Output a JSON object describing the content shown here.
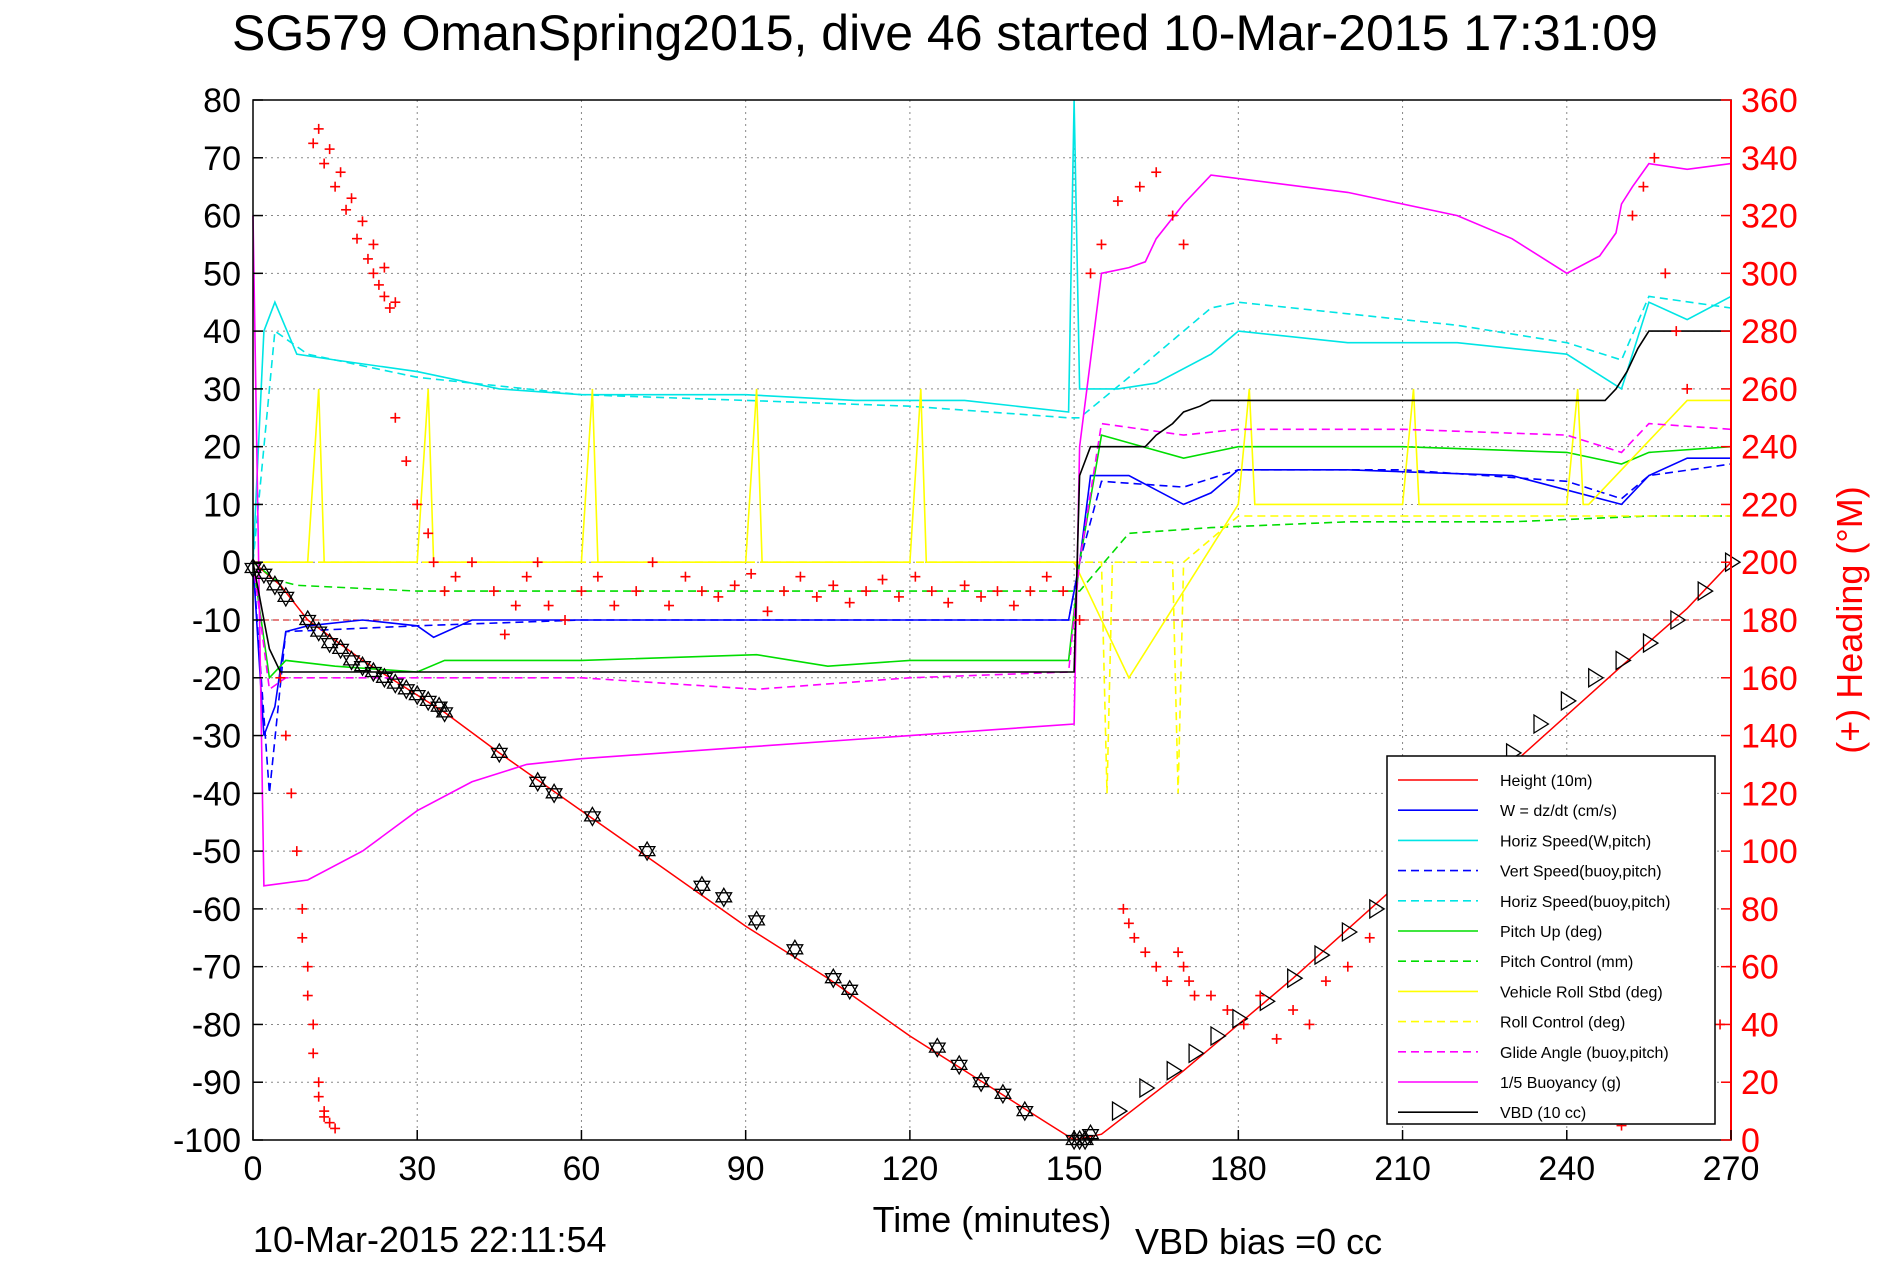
{
  "chart_data": {
    "type": "line",
    "title": "SG579 OmanSpring2015, dive 46 started 10-Mar-2015 17:31:09",
    "xlabel": "Time (minutes)",
    "ylabel_right": "(+) Heading (°M)",
    "footer_left": "10-Mar-2015 22:11:54",
    "footer_right": "VBD bias =0 cc",
    "xlim": [
      0,
      270
    ],
    "ylim": [
      -100,
      80
    ],
    "ylim_right": [
      0,
      360
    ],
    "xticks": [
      "0",
      "30",
      "60",
      "90",
      "120",
      "150",
      "180",
      "210",
      "240",
      "270"
    ],
    "yticks": [
      "80",
      "70",
      "60",
      "50",
      "40",
      "30",
      "20",
      "10",
      "0",
      "-10",
      "-20",
      "-30",
      "-40",
      "-50",
      "-60",
      "-70",
      "-80",
      "-90",
      "-100"
    ],
    "yticks_right": [
      "360",
      "340",
      "320",
      "300",
      "280",
      "260",
      "240",
      "220",
      "200",
      "180",
      "160",
      "140",
      "120",
      "100",
      "80",
      "60",
      "40",
      "20",
      "0"
    ],
    "grid": true,
    "legend_position": "bottom-right",
    "series": [
      {
        "name": "Height (10m)",
        "color": "#ff0000",
        "style": "solid",
        "x": [
          0,
          5,
          10,
          20,
          30,
          35,
          45,
          60,
          75,
          90,
          105,
          120,
          135,
          145,
          150,
          155,
          170,
          190,
          210,
          230,
          250,
          262,
          270
        ],
        "y": [
          0,
          -4,
          -10,
          -17,
          -23,
          -26,
          -33,
          -43,
          -53,
          -63,
          -72,
          -82,
          -91,
          -97,
          -100,
          -99,
          -88,
          -72,
          -55,
          -35,
          -18,
          -8,
          0
        ]
      },
      {
        "name": "W = dz/dt (cm/s)",
        "color": "#0000ff",
        "style": "solid",
        "x": [
          0,
          2,
          4,
          6,
          10,
          20,
          30,
          33,
          40,
          60,
          90,
          120,
          149,
          151,
          153,
          160,
          170,
          175,
          180,
          200,
          230,
          250,
          255,
          262,
          270
        ],
        "y": [
          0,
          -30,
          -25,
          -12,
          -11,
          -10,
          -11,
          -13,
          -10,
          -10,
          -10,
          -10,
          -10,
          0,
          15,
          15,
          10,
          12,
          16,
          16,
          15,
          10,
          15,
          18,
          18
        ]
      },
      {
        "name": "Horiz Speed(W,pitch)",
        "color": "#00e5e5",
        "style": "solid",
        "x": [
          0,
          2,
          4,
          8,
          15,
          30,
          45,
          60,
          90,
          110,
          130,
          149,
          150,
          151,
          153,
          158,
          165,
          175,
          180,
          200,
          220,
          240,
          250,
          255,
          262,
          270
        ],
        "y": [
          0,
          40,
          45,
          36,
          35,
          33,
          30,
          29,
          29,
          28,
          28,
          26,
          80,
          30,
          30,
          30,
          31,
          36,
          40,
          38,
          38,
          36,
          30,
          45,
          42,
          46
        ]
      },
      {
        "name": "Vert Speed(buoy,pitch)",
        "color": "#0000ff",
        "style": "dashed",
        "x": [
          0,
          3,
          6,
          30,
          60,
          90,
          120,
          149,
          151,
          155,
          170,
          180,
          210,
          240,
          250,
          255,
          270
        ],
        "y": [
          0,
          -40,
          -12,
          -11,
          -10,
          -10,
          -10,
          -10,
          0,
          14,
          13,
          16,
          16,
          14,
          11,
          15,
          17
        ]
      },
      {
        "name": "Horiz Speed(buoy,pitch)",
        "color": "#00e5e5",
        "style": "dashed",
        "x": [
          0,
          4,
          10,
          30,
          60,
          90,
          120,
          149,
          151,
          160,
          175,
          180,
          200,
          220,
          240,
          250,
          255,
          270
        ],
        "y": [
          0,
          40,
          36,
          32,
          29,
          28,
          27,
          25,
          25,
          32,
          44,
          45,
          43,
          41,
          38,
          35,
          46,
          44
        ]
      },
      {
        "name": "Pitch Up (deg)",
        "color": "#00dd00",
        "style": "solid",
        "x": [
          0,
          3,
          6,
          15,
          30,
          35,
          60,
          92,
          105,
          120,
          149,
          151,
          155,
          170,
          175,
          180,
          210,
          240,
          250,
          255,
          270
        ],
        "y": [
          0,
          -20,
          -17,
          -18,
          -19,
          -17,
          -17,
          -16,
          -18,
          -17,
          -17,
          0,
          22,
          18,
          19,
          20,
          20,
          19,
          17,
          19,
          20
        ]
      },
      {
        "name": "Pitch Control (mm)",
        "color": "#00dd00",
        "style": "dashed",
        "x": [
          0,
          4,
          8,
          30,
          60,
          90,
          120,
          149,
          151,
          160,
          175,
          200,
          230,
          255,
          270
        ],
        "y": [
          0,
          -3,
          -4,
          -5,
          -5,
          -5,
          -5,
          -5,
          -5,
          5,
          6,
          7,
          7,
          8,
          8
        ]
      },
      {
        "name": "Vehicle Roll Stbd (deg)",
        "color": "#ffff00",
        "style": "solid",
        "x": [
          0,
          10,
          12,
          13,
          14,
          30,
          32,
          33,
          34,
          60,
          62,
          63,
          64,
          90,
          92,
          93,
          94,
          120,
          122,
          123,
          124,
          148,
          150,
          160,
          180,
          182,
          183,
          184,
          210,
          212,
          213,
          214,
          240,
          242,
          243,
          244,
          262,
          270
        ],
        "y": [
          0,
          0,
          30,
          0,
          0,
          0,
          30,
          0,
          0,
          0,
          30,
          0,
          0,
          0,
          30,
          0,
          0,
          0,
          30,
          0,
          0,
          0,
          0,
          -20,
          10,
          30,
          10,
          10,
          10,
          30,
          10,
          10,
          10,
          30,
          10,
          10,
          28,
          28
        ]
      },
      {
        "name": "Roll Control (deg)",
        "color": "#ffff00",
        "style": "dashed",
        "x": [
          0,
          5,
          150,
          155,
          156,
          157,
          168,
          169,
          170,
          180,
          270
        ],
        "y": [
          0,
          0,
          0,
          0,
          -40,
          0,
          0,
          -40,
          0,
          8,
          8
        ]
      },
      {
        "name": "Glide Angle (buoy,pitch)",
        "color": "#ff00ff",
        "style": "dashed",
        "x": [
          0,
          3,
          6,
          30,
          60,
          92,
          120,
          149,
          151,
          155,
          170,
          180,
          210,
          240,
          250,
          255,
          270
        ],
        "y": [
          0,
          -22,
          -20,
          -20,
          -20,
          -22,
          -20,
          -19,
          0,
          24,
          22,
          23,
          23,
          22,
          19,
          24,
          23
        ]
      },
      {
        "name": "1/5 Buoyancy (g)",
        "color": "#ff00ff",
        "style": "solid",
        "x": [
          0,
          2,
          10,
          20,
          30,
          40,
          50,
          60,
          90,
          120,
          150,
          151,
          155,
          160,
          163,
          165,
          170,
          175,
          200,
          220,
          230,
          240,
          246,
          249,
          250,
          252,
          255,
          262,
          270
        ],
        "y": [
          60,
          -56,
          -55,
          -50,
          -43,
          -38,
          -35,
          -34,
          -32,
          -30,
          -28,
          20,
          50,
          51,
          52,
          56,
          62,
          67,
          64,
          60,
          56,
          50,
          53,
          57,
          62,
          65,
          69,
          68,
          69
        ]
      },
      {
        "name": "VBD (10 cc)",
        "color": "#000000",
        "style": "solid",
        "x": [
          0,
          3,
          5,
          150,
          151,
          153,
          163,
          165,
          168,
          170,
          173,
          175,
          247,
          249,
          251,
          253,
          255,
          262,
          270
        ],
        "y": [
          0,
          -15,
          -19,
          -19,
          15,
          20,
          20,
          22,
          24,
          26,
          27,
          28,
          28,
          30,
          33,
          37,
          40,
          40,
          40
        ]
      }
    ],
    "heading_marks": {
      "name": "(+) Heading",
      "axis": "right",
      "color": "#ff0000",
      "x": [
        11,
        13,
        15,
        17,
        19,
        21,
        22,
        23,
        24,
        25,
        12,
        14,
        16,
        18,
        20,
        22,
        24,
        26,
        5,
        6,
        7,
        8,
        9,
        9,
        10,
        10,
        11,
        11,
        12,
        12,
        13,
        13,
        14,
        15,
        26,
        28,
        30,
        32,
        33,
        35,
        37,
        40,
        44,
        46,
        48,
        50,
        52,
        54,
        57,
        60,
        63,
        66,
        70,
        73,
        76,
        79,
        82,
        85,
        88,
        91,
        94,
        97,
        100,
        103,
        106,
        109,
        112,
        115,
        118,
        121,
        124,
        127,
        130,
        133,
        136,
        139,
        142,
        145,
        148,
        151,
        153,
        155,
        158,
        162,
        165,
        168,
        170,
        159,
        160,
        161,
        163,
        165,
        167,
        169,
        170,
        171,
        172,
        175,
        178,
        181,
        184,
        187,
        190,
        193,
        196,
        200,
        204,
        208,
        212,
        216,
        220,
        224,
        228,
        232,
        236,
        240,
        244,
        246,
        248,
        250,
        252,
        254,
        256,
        258,
        260,
        262,
        265,
        268,
        270
      ],
      "y": [
        345,
        338,
        330,
        322,
        312,
        305,
        300,
        296,
        292,
        288,
        350,
        343,
        335,
        326,
        318,
        310,
        302,
        290,
        160,
        140,
        120,
        100,
        80,
        70,
        60,
        50,
        40,
        30,
        20,
        15,
        10,
        8,
        6,
        4,
        250,
        235,
        220,
        210,
        200,
        190,
        195,
        200,
        190,
        175,
        185,
        195,
        200,
        185,
        180,
        190,
        195,
        185,
        190,
        200,
        185,
        195,
        190,
        188,
        192,
        196,
        183,
        190,
        195,
        188,
        192,
        186,
        190,
        194,
        188,
        195,
        190,
        186,
        192,
        188,
        190,
        185,
        190,
        195,
        190,
        180,
        300,
        310,
        325,
        330,
        335,
        320,
        310,
        80,
        75,
        70,
        65,
        60,
        55,
        65,
        60,
        55,
        50,
        50,
        45,
        40,
        50,
        35,
        45,
        40,
        55,
        60,
        70,
        40,
        30,
        55,
        40,
        35,
        25,
        45,
        30,
        20,
        15,
        20,
        10,
        5,
        320,
        330,
        340,
        300,
        280,
        260,
        20,
        40,
        60
      ]
    },
    "vbd_markers": {
      "symbol": "hexagram-triangle",
      "color": "#000000",
      "x": [
        0,
        2,
        4,
        6,
        10,
        12,
        14,
        16,
        18,
        20,
        22,
        24,
        26,
        28,
        30,
        32,
        34,
        35,
        45,
        52,
        55,
        62,
        72,
        82,
        86,
        92,
        99,
        106,
        109,
        125,
        129,
        133,
        137,
        141,
        150,
        151,
        152,
        153
      ],
      "y": [
        -1,
        -2,
        -4,
        -6,
        -10,
        -12,
        -14,
        -15,
        -17,
        -18,
        -19,
        -20,
        -21,
        -22,
        -23,
        -24,
        -25,
        -26,
        -33,
        -38,
        -40,
        -44,
        -50,
        -56,
        -58,
        -62,
        -67,
        -72,
        -74,
        -84,
        -87,
        -90,
        -92,
        -95,
        -100,
        -100,
        -100,
        -99
      ]
    },
    "vbd_up_markers": {
      "symbol": "triangle-right",
      "color": "#000000",
      "x": [
        158,
        163,
        168,
        172,
        176,
        180,
        185,
        190,
        195,
        200,
        205,
        210,
        215,
        220,
        225,
        230,
        235,
        240,
        245,
        250,
        255,
        260,
        265,
        270
      ],
      "y": [
        -95,
        -91,
        -88,
        -85,
        -82,
        -79,
        -76,
        -72,
        -68,
        -64,
        -60,
        -56,
        -52,
        -46,
        -40,
        -33,
        -28,
        -24,
        -20,
        -17,
        -14,
        -10,
        -5,
        0
      ]
    }
  }
}
